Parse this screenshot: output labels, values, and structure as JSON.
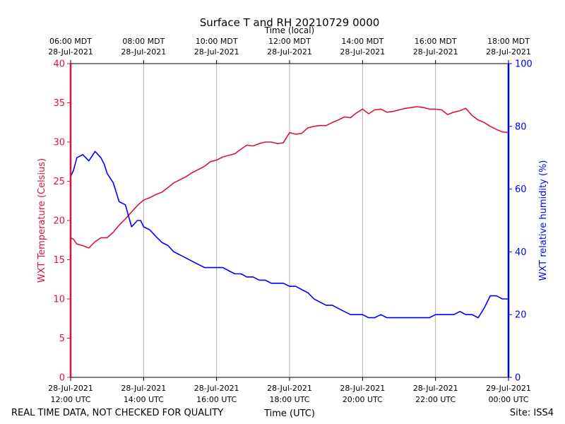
{
  "chart_data": {
    "type": "line",
    "title": "Surface T and RH 20210729 0000",
    "xlabel_top": "Time (local)",
    "xlabel_bottom": "Time (UTC)",
    "ylabel_left": "WXT Temperature (Celsius)",
    "ylabel_right": "WXT relative humidity (%)",
    "xlim_hours": [
      12,
      24
    ],
    "ylim_left": [
      0,
      40
    ],
    "ylim_right": [
      0,
      100
    ],
    "yticks_left": [
      0,
      5,
      10,
      15,
      20,
      25,
      30,
      35,
      40
    ],
    "yticks_right": [
      0,
      20,
      40,
      60,
      80,
      100
    ],
    "colors": {
      "temperature": "#dc143c",
      "humidity": "#0000ff",
      "grid": "#b0b0b0",
      "text": "#000000"
    },
    "xticks_bottom": [
      {
        "hour": 12,
        "date": "28-Jul-2021",
        "time": "12:00 UTC"
      },
      {
        "hour": 14,
        "date": "28-Jul-2021",
        "time": "14:00 UTC"
      },
      {
        "hour": 16,
        "date": "28-Jul-2021",
        "time": "16:00 UTC"
      },
      {
        "hour": 18,
        "date": "28-Jul-2021",
        "time": "18:00 UTC"
      },
      {
        "hour": 20,
        "date": "28-Jul-2021",
        "time": "20:00 UTC"
      },
      {
        "hour": 22,
        "date": "28-Jul-2021",
        "time": "22:00 UTC"
      },
      {
        "hour": 24,
        "date": "29-Jul-2021",
        "time": "00:00 UTC"
      }
    ],
    "xticks_top": [
      {
        "hour": 12,
        "time": "06:00 MDT",
        "date": "28-Jul-2021"
      },
      {
        "hour": 14,
        "time": "08:00 MDT",
        "date": "28-Jul-2021"
      },
      {
        "hour": 16,
        "time": "10:00 MDT",
        "date": "28-Jul-2021"
      },
      {
        "hour": 18,
        "time": "12:00 MDT",
        "date": "28-Jul-2021"
      },
      {
        "hour": 20,
        "time": "14:00 MDT",
        "date": "28-Jul-2021"
      },
      {
        "hour": 22,
        "time": "16:00 MDT",
        "date": "28-Jul-2021"
      },
      {
        "hour": 24,
        "time": "18:00 MDT",
        "date": "28-Jul-2021"
      }
    ],
    "series": [
      {
        "name": "WXT Temperature",
        "axis": "left",
        "x": [
          12.0,
          12.08,
          12.17,
          12.33,
          12.5,
          12.67,
          12.83,
          13.0,
          13.17,
          13.33,
          13.5,
          13.67,
          13.83,
          14.0,
          14.17,
          14.33,
          14.5,
          14.67,
          14.83,
          15.0,
          15.17,
          15.33,
          15.5,
          15.67,
          15.83,
          16.0,
          16.17,
          16.33,
          16.5,
          16.67,
          16.83,
          17.0,
          17.17,
          17.33,
          17.5,
          17.67,
          17.83,
          18.0,
          18.17,
          18.33,
          18.5,
          18.67,
          18.83,
          19.0,
          19.17,
          19.33,
          19.5,
          19.67,
          19.83,
          20.0,
          20.17,
          20.33,
          20.5,
          20.67,
          20.83,
          21.0,
          21.17,
          21.33,
          21.5,
          21.67,
          21.83,
          22.0,
          22.17,
          22.33,
          22.5,
          22.67,
          22.83,
          23.0,
          23.17,
          23.33,
          23.5,
          23.67,
          23.83,
          24.0
        ],
        "y": [
          17.8,
          17.6,
          17.0,
          16.8,
          16.5,
          17.3,
          17.8,
          17.8,
          18.5,
          19.4,
          20.2,
          21.1,
          21.9,
          22.6,
          22.9,
          23.3,
          23.6,
          24.2,
          24.8,
          25.2,
          25.6,
          26.1,
          26.5,
          26.9,
          27.5,
          27.7,
          28.1,
          28.3,
          28.5,
          29.1,
          29.6,
          29.5,
          29.8,
          30.0,
          30.0,
          29.8,
          29.9,
          31.2,
          31.0,
          31.1,
          31.8,
          32.0,
          32.1,
          32.1,
          32.5,
          32.8,
          33.2,
          33.1,
          33.7,
          34.2,
          33.6,
          34.1,
          34.2,
          33.8,
          33.9,
          34.1,
          34.3,
          34.4,
          34.5,
          34.4,
          34.2,
          34.2,
          34.1,
          33.5,
          33.8,
          34.0,
          34.3,
          33.4,
          32.8,
          32.5,
          32.0,
          31.6,
          31.3,
          31.2
        ]
      },
      {
        "name": "WXT relative humidity",
        "axis": "right",
        "x": [
          12.0,
          12.08,
          12.17,
          12.33,
          12.5,
          12.67,
          12.83,
          12.92,
          13.0,
          13.17,
          13.33,
          13.5,
          13.67,
          13.83,
          13.92,
          14.0,
          14.17,
          14.33,
          14.5,
          14.67,
          14.83,
          15.0,
          15.17,
          15.33,
          15.5,
          15.67,
          15.83,
          16.0,
          16.17,
          16.33,
          16.5,
          16.67,
          16.83,
          17.0,
          17.17,
          17.33,
          17.5,
          17.67,
          17.83,
          18.0,
          18.17,
          18.33,
          18.5,
          18.67,
          18.83,
          19.0,
          19.17,
          19.33,
          19.5,
          19.67,
          19.83,
          20.0,
          20.17,
          20.33,
          20.5,
          20.67,
          20.83,
          21.0,
          21.17,
          21.33,
          21.5,
          21.67,
          21.83,
          22.0,
          22.17,
          22.33,
          22.5,
          22.67,
          22.83,
          23.0,
          23.17,
          23.33,
          23.5,
          23.67,
          23.83,
          24.0
        ],
        "y": [
          64,
          66,
          70,
          71,
          69,
          72,
          70,
          68,
          65,
          62,
          56,
          55,
          48,
          50,
          50,
          48,
          47,
          45,
          43,
          42,
          40,
          39,
          38,
          37,
          36,
          35,
          35,
          35,
          35,
          34,
          33,
          33,
          32,
          32,
          31,
          31,
          30,
          30,
          30,
          29,
          29,
          28,
          27,
          25,
          24,
          23,
          23,
          22,
          21,
          20,
          20,
          20,
          19,
          19,
          20,
          19,
          19,
          19,
          19,
          19,
          19,
          19,
          19,
          20,
          20,
          20,
          20,
          21,
          20,
          20,
          19,
          22,
          26,
          26,
          25,
          25
        ]
      }
    ]
  },
  "footer": {
    "note": "REAL TIME DATA, NOT CHECKED FOR QUALITY",
    "site": "Site: ISS4"
  }
}
